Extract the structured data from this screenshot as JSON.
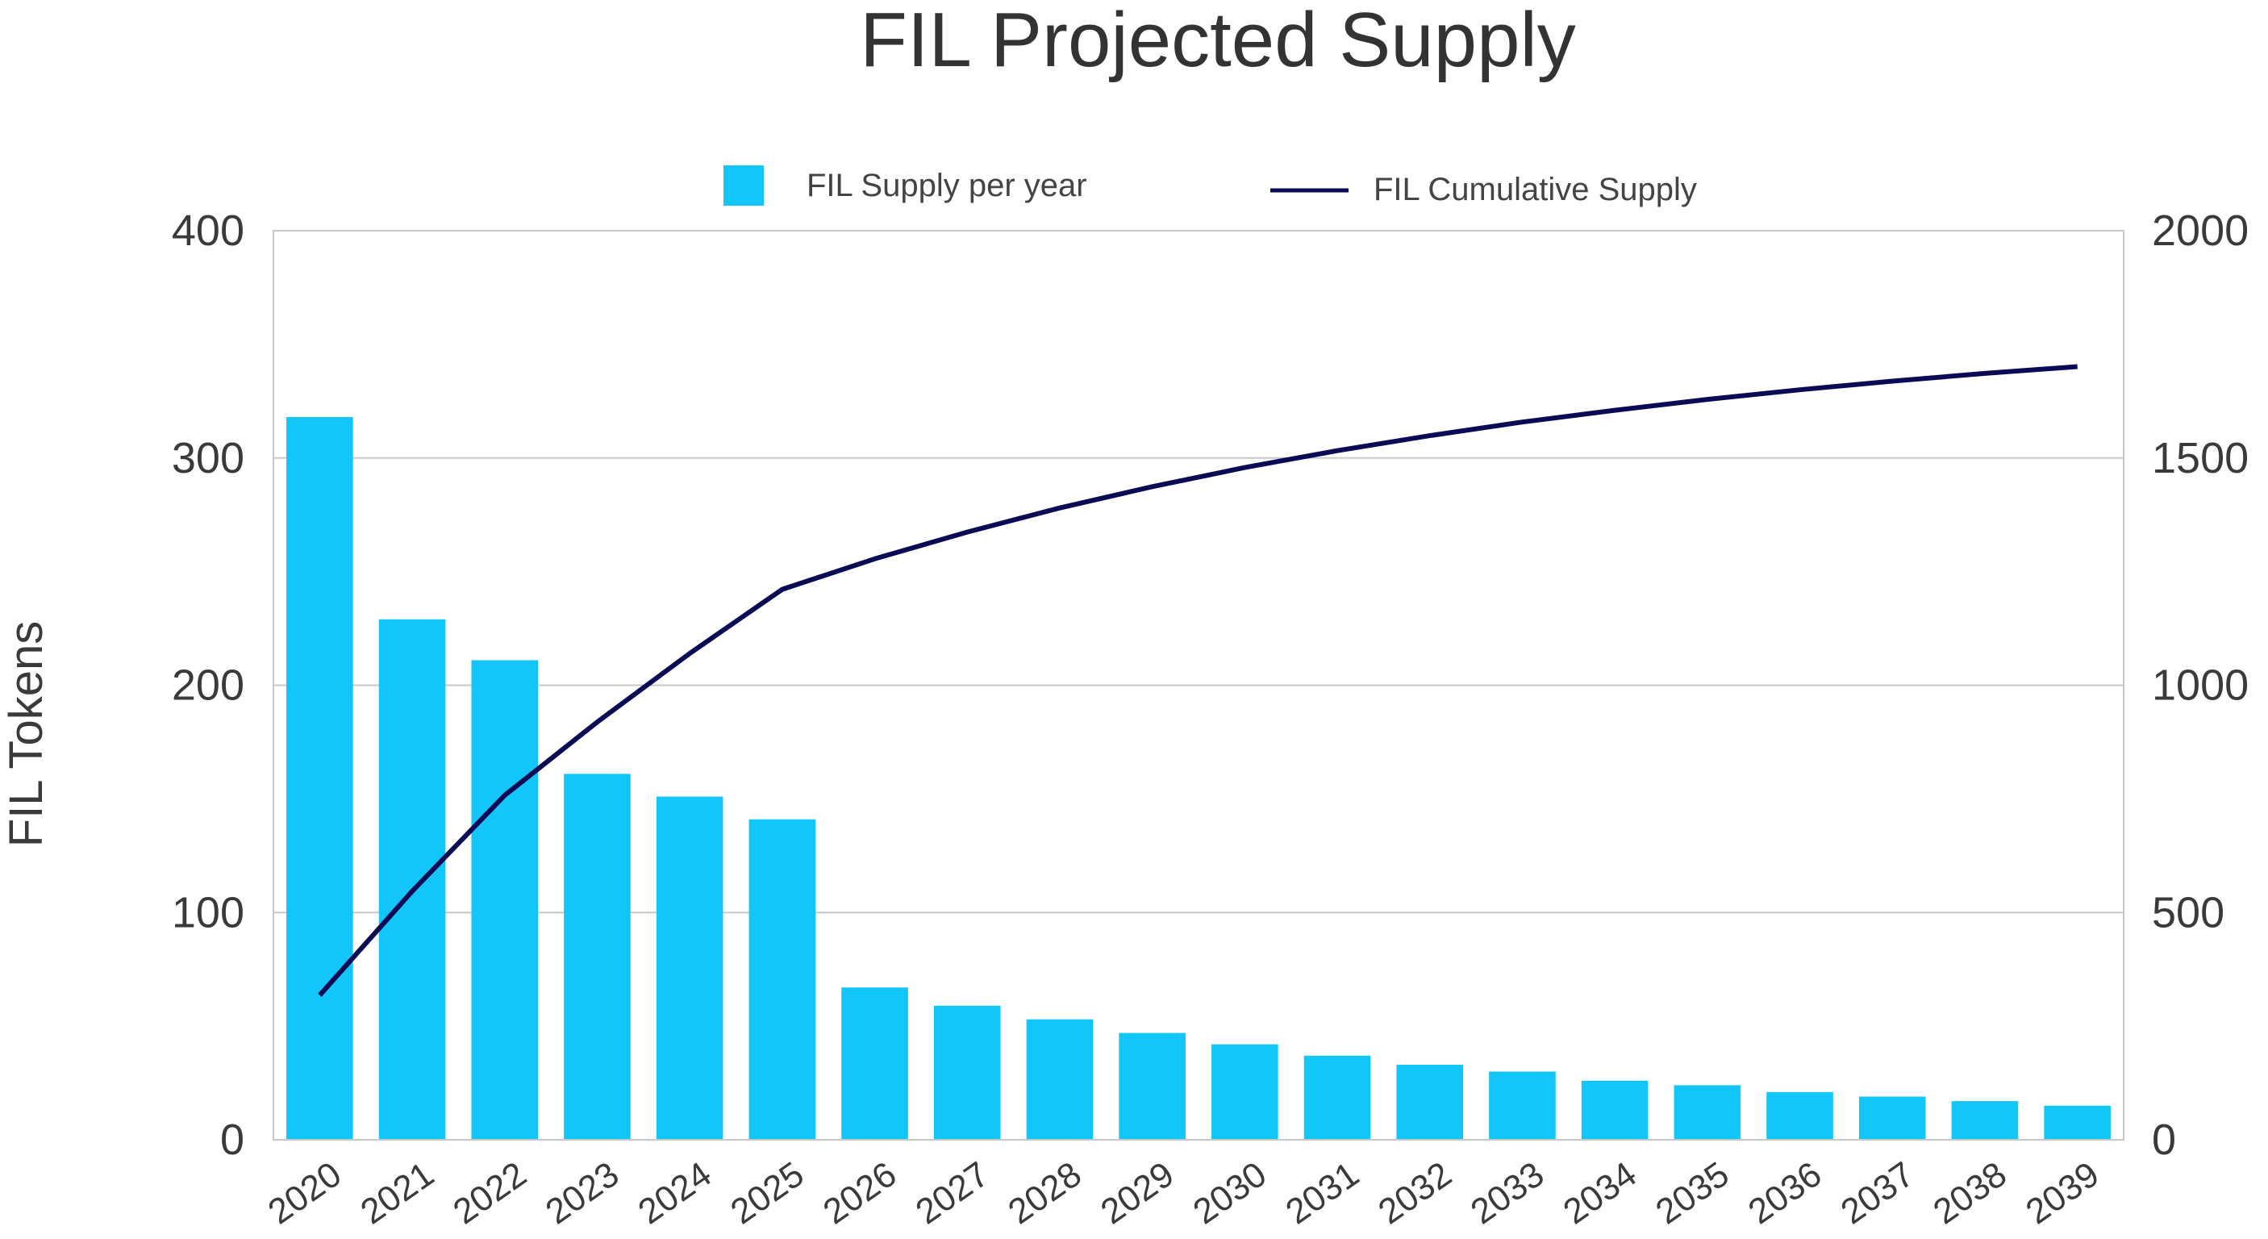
{
  "chart_data": {
    "type": "bar",
    "title": "FIL Projected Supply",
    "ylabel": "FIL Tokens",
    "y2label": "",
    "xlabel": "",
    "categories": [
      "2020",
      "2021",
      "2022",
      "2023",
      "2024",
      "2025",
      "2026",
      "2027",
      "2028",
      "2029",
      "2030",
      "2031",
      "2032",
      "2033",
      "2034",
      "2035",
      "2036",
      "2037",
      "2038",
      "2039"
    ],
    "series": [
      {
        "name": "FIL Supply per year",
        "type": "bar",
        "axis": "left",
        "color": "#12c6f9",
        "values": [
          318,
          229,
          211,
          161,
          151,
          141,
          67,
          59,
          53,
          47,
          42,
          37,
          33,
          30,
          26,
          24,
          21,
          19,
          17,
          15
        ]
      },
      {
        "name": "FIL Cumulative Supply",
        "type": "line",
        "axis": "right",
        "color": "#0a0a55",
        "values": [
          318,
          547,
          758,
          919,
          1070,
          1211,
          1278,
          1337,
          1390,
          1437,
          1479,
          1516,
          1549,
          1579,
          1605,
          1629,
          1650,
          1669,
          1686,
          1701
        ]
      }
    ],
    "ylim": [
      0,
      400
    ],
    "y2lim": [
      0,
      2000
    ],
    "yticks": [
      0,
      100,
      200,
      300,
      400
    ],
    "y2ticks": [
      0,
      500,
      1000,
      1500,
      2000
    ],
    "grid": true,
    "legend": "top-center"
  }
}
